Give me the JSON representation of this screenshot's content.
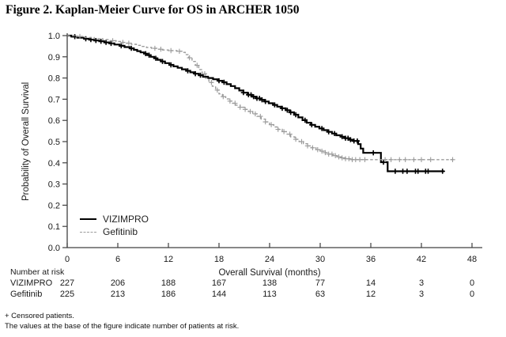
{
  "figure": {
    "title": "Figure 2. Kaplan-Meier Curve for OS in ARCHER 1050"
  },
  "chart_data": {
    "type": "line",
    "subtype": "kaplan-meier-step",
    "title": "Figure 2. Kaplan-Meier Curve for OS in ARCHER 1050",
    "xlabel": "Overall Survival (months)",
    "ylabel": "Probability of Overall Survival",
    "xlim": [
      0,
      48
    ],
    "ylim": [
      0.0,
      1.0
    ],
    "x_ticks": [
      0,
      6,
      12,
      18,
      24,
      30,
      36,
      42,
      48
    ],
    "y_ticks": [
      0.0,
      0.1,
      0.2,
      0.3,
      0.4,
      0.5,
      0.6,
      0.7,
      0.8,
      0.9,
      1.0
    ],
    "grid": false,
    "axis_color": "#404040",
    "legend_position": "inside-lower-left",
    "censor_marker": "plus-sign",
    "series": [
      {
        "name": "VIZIMPRO",
        "color": "#000000",
        "line_style": "solid",
        "steps": [
          [
            0,
            1.0
          ],
          [
            0.5,
            0.995
          ],
          [
            1.2,
            0.99
          ],
          [
            2.0,
            0.985
          ],
          [
            2.6,
            0.981
          ],
          [
            3.2,
            0.977
          ],
          [
            3.8,
            0.973
          ],
          [
            4.4,
            0.968
          ],
          [
            5.0,
            0.963
          ],
          [
            5.6,
            0.958
          ],
          [
            6.2,
            0.952
          ],
          [
            6.8,
            0.946
          ],
          [
            7.4,
            0.94
          ],
          [
            7.9,
            0.933
          ],
          [
            8.3,
            0.927
          ],
          [
            8.7,
            0.921
          ],
          [
            9.1,
            0.915
          ],
          [
            9.5,
            0.908
          ],
          [
            9.9,
            0.9
          ],
          [
            10.3,
            0.893
          ],
          [
            10.7,
            0.886
          ],
          [
            11.1,
            0.878
          ],
          [
            11.6,
            0.87
          ],
          [
            12.1,
            0.862
          ],
          [
            12.6,
            0.855
          ],
          [
            13.1,
            0.848
          ],
          [
            13.6,
            0.841
          ],
          [
            14.1,
            0.834
          ],
          [
            14.6,
            0.827
          ],
          [
            15.1,
            0.82
          ],
          [
            15.6,
            0.813
          ],
          [
            16.1,
            0.806
          ],
          [
            16.7,
            0.8
          ],
          [
            17.3,
            0.794
          ],
          [
            17.9,
            0.787
          ],
          [
            18.4,
            0.78
          ],
          [
            18.9,
            0.771
          ],
          [
            19.4,
            0.762
          ],
          [
            19.9,
            0.752
          ],
          [
            20.4,
            0.741
          ],
          [
            20.9,
            0.731
          ],
          [
            21.4,
            0.721
          ],
          [
            21.9,
            0.712
          ],
          [
            22.4,
            0.704
          ],
          [
            22.9,
            0.697
          ],
          [
            23.4,
            0.689
          ],
          [
            23.9,
            0.681
          ],
          [
            24.4,
            0.673
          ],
          [
            24.9,
            0.665
          ],
          [
            25.4,
            0.657
          ],
          [
            25.9,
            0.648
          ],
          [
            26.4,
            0.638
          ],
          [
            26.9,
            0.627
          ],
          [
            27.4,
            0.614
          ],
          [
            27.9,
            0.601
          ],
          [
            28.4,
            0.589
          ],
          [
            28.9,
            0.579
          ],
          [
            29.4,
            0.57
          ],
          [
            29.9,
            0.562
          ],
          [
            30.4,
            0.554
          ],
          [
            30.9,
            0.546
          ],
          [
            31.4,
            0.538
          ],
          [
            31.9,
            0.53
          ],
          [
            32.4,
            0.523
          ],
          [
            32.9,
            0.516
          ],
          [
            33.4,
            0.509
          ],
          [
            33.9,
            0.503
          ],
          [
            34.5,
            0.488
          ],
          [
            34.8,
            0.467
          ],
          [
            35.1,
            0.447
          ],
          [
            37.2,
            0.403
          ],
          [
            38.0,
            0.36
          ],
          [
            44.7,
            0.36
          ]
        ],
        "censor_marks_months": [
          0.9,
          2.2,
          2.8,
          3.4,
          4.0,
          4.6,
          5.2,
          6.4,
          7.6,
          9.3,
          9.7,
          10.5,
          11.3,
          12.3,
          14.3,
          15.2,
          15.8,
          18.0,
          18.6,
          20.9,
          21.5,
          21.8,
          22.1,
          22.5,
          22.8,
          23.1,
          23.5,
          24.6,
          25.5,
          26.1,
          26.5,
          27.1,
          28.2,
          29.0,
          30.2,
          31.0,
          31.7,
          32.6,
          33.0,
          33.3,
          33.6,
          34.0,
          34.4,
          36.3,
          37.5,
          38.9,
          39.8,
          40.3,
          41.3,
          41.6,
          42.5,
          42.8,
          44.5
        ]
      },
      {
        "name": "Gefitinib",
        "color": "#9b9b9b",
        "line_style": "dashed",
        "steps": [
          [
            0,
            1.0
          ],
          [
            1.0,
            0.996
          ],
          [
            2.0,
            0.991
          ],
          [
            3.2,
            0.986
          ],
          [
            4.2,
            0.981
          ],
          [
            5.0,
            0.976
          ],
          [
            5.8,
            0.972
          ],
          [
            6.4,
            0.968
          ],
          [
            7.0,
            0.964
          ],
          [
            7.6,
            0.959
          ],
          [
            8.2,
            0.954
          ],
          [
            8.8,
            0.949
          ],
          [
            9.4,
            0.944
          ],
          [
            10.0,
            0.94
          ],
          [
            10.6,
            0.936
          ],
          [
            11.2,
            0.932
          ],
          [
            12.0,
            0.929
          ],
          [
            13.0,
            0.926
          ],
          [
            13.6,
            0.921
          ],
          [
            14.0,
            0.91
          ],
          [
            14.4,
            0.895
          ],
          [
            14.8,
            0.878
          ],
          [
            15.2,
            0.86
          ],
          [
            15.6,
            0.84
          ],
          [
            16.0,
            0.82
          ],
          [
            16.4,
            0.799
          ],
          [
            16.8,
            0.779
          ],
          [
            17.2,
            0.761
          ],
          [
            17.6,
            0.743
          ],
          [
            18.0,
            0.725
          ],
          [
            18.4,
            0.712
          ],
          [
            18.8,
            0.701
          ],
          [
            19.2,
            0.691
          ],
          [
            19.6,
            0.681
          ],
          [
            20.0,
            0.672
          ],
          [
            20.5,
            0.662
          ],
          [
            21.0,
            0.652
          ],
          [
            21.5,
            0.642
          ],
          [
            22.0,
            0.631
          ],
          [
            22.5,
            0.619
          ],
          [
            23.0,
            0.606
          ],
          [
            23.5,
            0.593
          ],
          [
            24.0,
            0.58
          ],
          [
            24.5,
            0.569
          ],
          [
            25.0,
            0.558
          ],
          [
            25.5,
            0.547
          ],
          [
            26.0,
            0.535
          ],
          [
            26.5,
            0.522
          ],
          [
            27.0,
            0.511
          ],
          [
            27.5,
            0.5
          ],
          [
            28.0,
            0.49
          ],
          [
            28.5,
            0.48
          ],
          [
            29.0,
            0.471
          ],
          [
            29.5,
            0.462
          ],
          [
            30.0,
            0.455
          ],
          [
            30.5,
            0.448
          ],
          [
            31.0,
            0.441
          ],
          [
            31.5,
            0.434
          ],
          [
            32.0,
            0.428
          ],
          [
            32.5,
            0.423
          ],
          [
            33.0,
            0.419
          ],
          [
            33.5,
            0.415
          ],
          [
            45.8,
            0.415
          ]
        ],
        "censor_marks_months": [
          1.5,
          5.4,
          6.6,
          7.3,
          10.4,
          11.1,
          12.3,
          13.3,
          14.5,
          15.4,
          16.3,
          17.1,
          17.8,
          18.5,
          19.3,
          19.9,
          20.5,
          21.1,
          21.7,
          22.3,
          22.9,
          23.5,
          24.2,
          25.0,
          25.7,
          26.4,
          27.1,
          27.8,
          28.5,
          29.1,
          29.7,
          30.2,
          30.6,
          31.0,
          31.4,
          31.8,
          32.2,
          32.6,
          33.0,
          33.4,
          33.8,
          34.2,
          34.7,
          35.3,
          37.7,
          38.4,
          39.4,
          40.1,
          41.1,
          42.0,
          43.1,
          45.7
        ]
      }
    ],
    "number_at_risk": {
      "label": "Number at risk",
      "time_points": [
        0,
        6,
        12,
        18,
        24,
        30,
        36,
        42,
        48
      ],
      "rows": [
        {
          "name": "VIZIMPRO",
          "counts": [
            227,
            206,
            188,
            167,
            138,
            77,
            14,
            3,
            0
          ]
        },
        {
          "name": "Gefitinib",
          "counts": [
            225,
            213,
            186,
            144,
            113,
            63,
            12,
            3,
            0
          ]
        }
      ]
    }
  },
  "legend": {
    "items": [
      {
        "label": "VIZIMPRO",
        "style": "solid-black-line"
      },
      {
        "label": "Gefitinib",
        "style": "dashed-gray-line"
      }
    ]
  },
  "footnotes": [
    "+ Censored patients.",
    "The values at the base of the figure indicate number of patients at risk."
  ]
}
